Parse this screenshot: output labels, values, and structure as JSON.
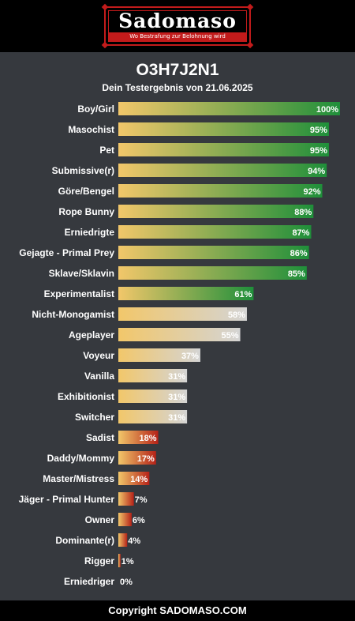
{
  "header": {
    "logo_text": "Sadomaso",
    "logo_tagline": "Wo Bestrafung zur Belohnung wird"
  },
  "result": {
    "code": "O3H7J2N1",
    "subtitle": "Dein Testergebnis von 21.06.2025"
  },
  "colors": {
    "background": "#36393e",
    "bar_start": "#f2c76a",
    "high": "#1f8f3a",
    "mid": "#d4d4d4",
    "low": "#b52218"
  },
  "chart_data": {
    "type": "bar",
    "orientation": "horizontal",
    "xlim": [
      0,
      100
    ],
    "unit": "%",
    "categories": [
      "Boy/Girl",
      "Masochist",
      "Pet",
      "Submissive(r)",
      "Göre/Bengel",
      "Rope Bunny",
      "Erniedrigte",
      "Gejagte - Primal Prey",
      "Sklave/Sklavin",
      "Experimentalist",
      "Nicht-Monogamist",
      "Ageplayer",
      "Voyeur",
      "Vanilla",
      "Exhibitionist",
      "Switcher",
      "Sadist",
      "Daddy/Mommy",
      "Master/Mistress",
      "Jäger - Primal Hunter",
      "Owner",
      "Dominante(r)",
      "Rigger",
      "Erniedriger"
    ],
    "values": [
      100,
      95,
      95,
      94,
      92,
      88,
      87,
      86,
      85,
      61,
      58,
      55,
      37,
      31,
      31,
      31,
      18,
      17,
      14,
      7,
      6,
      4,
      1,
      0
    ],
    "labels": [
      "100%",
      "95%",
      "95%",
      "94%",
      "92%",
      "88%",
      "87%",
      "86%",
      "85%",
      "61%",
      "58%",
      "55%",
      "37%",
      "31%",
      "31%",
      "31%",
      "18%",
      "17%",
      "14%",
      "7%",
      "6%",
      "4%",
      "1%",
      "0%"
    ]
  },
  "footer": {
    "copyright": "Copyright SADOMASO.COM"
  }
}
